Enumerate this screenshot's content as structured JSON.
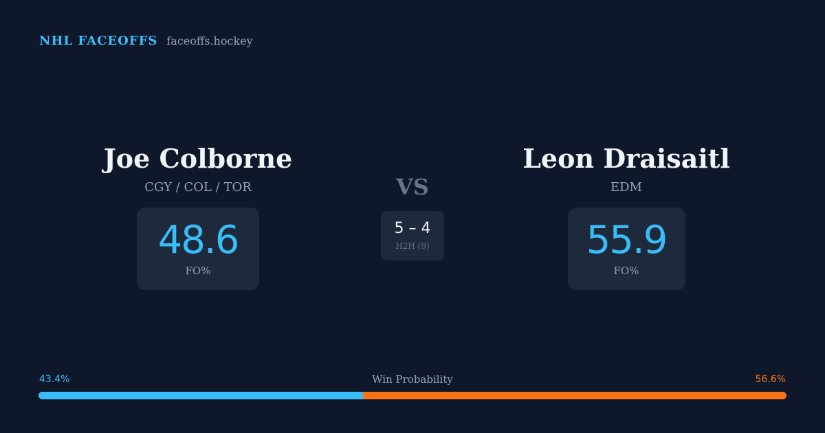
{
  "brand": {
    "name": "NHL FACEOFFS",
    "url": "faceoffs.hockey"
  },
  "player_left": {
    "name": "Joe Colborne",
    "team": "CGY / COL / TOR",
    "value": "48.6",
    "label": "FO%"
  },
  "player_right": {
    "name": "Leon Draisaitl",
    "team": "EDM",
    "value": "55.9",
    "label": "FO%"
  },
  "vs": "VS",
  "h2h": {
    "score": "5 – 4",
    "label": "H2H (9)"
  },
  "win_probability": {
    "title": "Win Probability",
    "left_label": "43.4%",
    "right_label": "56.6%",
    "left_value": 43.4,
    "right_value": 56.6,
    "left_color": "#38bdf8",
    "right_color": "#f97316"
  }
}
